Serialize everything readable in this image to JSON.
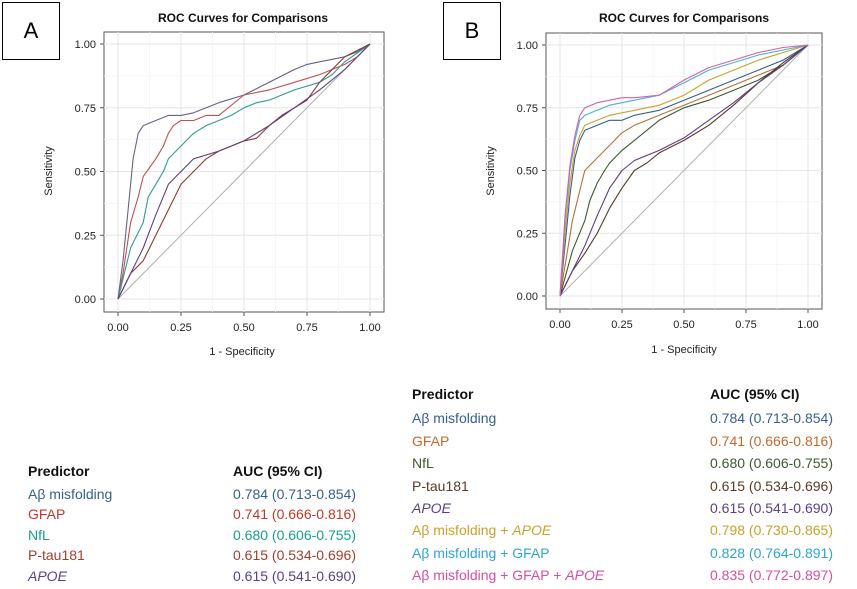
{
  "panels": [
    {
      "label": "A",
      "chart_data": {
        "type": "line",
        "title": "ROC Curves for Comparisons",
        "xlabel": "1 - Specificity",
        "ylabel": "Sensitivity",
        "xlim": [
          0,
          1
        ],
        "ylim": [
          0,
          1
        ],
        "xticks": [
          "0.00",
          "0.25",
          "0.50",
          "0.75",
          "1.00"
        ],
        "yticks": [
          "0.00",
          "0.25",
          "0.50",
          "0.75",
          "1.00"
        ],
        "grid": true,
        "series": [
          {
            "name": "Aβ misfolding",
            "color": "#6b5f8c",
            "x": [
              0,
              0.02,
              0.04,
              0.06,
              0.08,
              0.1,
              0.15,
              0.2,
              0.25,
              0.3,
              0.35,
              0.4,
              0.5,
              0.6,
              0.7,
              0.75,
              0.8,
              0.9,
              0.95,
              1
            ],
            "y": [
              0,
              0.15,
              0.35,
              0.55,
              0.65,
              0.68,
              0.7,
              0.72,
              0.72,
              0.73,
              0.75,
              0.77,
              0.8,
              0.85,
              0.9,
              0.92,
              0.93,
              0.95,
              0.97,
              1
            ]
          },
          {
            "name": "GFAP",
            "color": "#c0504d",
            "x": [
              0,
              0.02,
              0.05,
              0.08,
              0.1,
              0.15,
              0.18,
              0.2,
              0.22,
              0.25,
              0.3,
              0.35,
              0.4,
              0.5,
              0.6,
              0.7,
              0.8,
              0.9,
              0.95,
              1
            ],
            "y": [
              0,
              0.1,
              0.3,
              0.4,
              0.48,
              0.55,
              0.6,
              0.65,
              0.68,
              0.7,
              0.7,
              0.72,
              0.72,
              0.8,
              0.82,
              0.85,
              0.88,
              0.92,
              0.95,
              1
            ]
          },
          {
            "name": "NfL",
            "color": "#2e9d8f",
            "x": [
              0,
              0.05,
              0.1,
              0.12,
              0.15,
              0.18,
              0.2,
              0.25,
              0.3,
              0.35,
              0.4,
              0.45,
              0.5,
              0.55,
              0.6,
              0.7,
              0.8,
              0.85,
              0.9,
              1
            ],
            "y": [
              0,
              0.2,
              0.3,
              0.4,
              0.45,
              0.5,
              0.55,
              0.6,
              0.65,
              0.68,
              0.7,
              0.72,
              0.75,
              0.77,
              0.78,
              0.82,
              0.85,
              0.88,
              0.93,
              1
            ]
          },
          {
            "name": "P-tau181",
            "color": "#8c3b2e",
            "x": [
              0,
              0.05,
              0.1,
              0.15,
              0.2,
              0.25,
              0.3,
              0.35,
              0.4,
              0.45,
              0.5,
              0.55,
              0.6,
              0.65,
              0.7,
              0.75,
              0.8,
              0.85,
              0.9,
              1
            ],
            "y": [
              0,
              0.1,
              0.15,
              0.25,
              0.35,
              0.45,
              0.5,
              0.55,
              0.58,
              0.6,
              0.62,
              0.63,
              0.68,
              0.72,
              0.75,
              0.78,
              0.85,
              0.9,
              0.95,
              1
            ]
          },
          {
            "name": "APOE",
            "color": "#5a3f86",
            "x": [
              0,
              0.05,
              0.1,
              0.15,
              0.2,
              0.25,
              0.3,
              0.4,
              0.5,
              0.6,
              0.7,
              0.8,
              0.9,
              0.95,
              1
            ],
            "y": [
              0,
              0.1,
              0.2,
              0.33,
              0.45,
              0.5,
              0.55,
              0.58,
              0.62,
              0.68,
              0.75,
              0.82,
              0.9,
              0.95,
              1
            ]
          }
        ]
      },
      "table": {
        "header": {
          "predictor": "Predictor",
          "auc": "AUC (95% CI)"
        },
        "rows": [
          {
            "name": "Aβ misfolding",
            "auc": "0.784 (0.713-0.854)",
            "color": "#365f91"
          },
          {
            "name": "GFAP",
            "auc": "0.741 (0.666-0.816)",
            "color": "#c0392b"
          },
          {
            "name": "NfL",
            "auc": "0.680 (0.606-0.755)",
            "color": "#17a08c"
          },
          {
            "name": "P-tau181",
            "auc": "0.615 (0.534-0.696)",
            "color": "#a0402e"
          },
          {
            "name": "APOE",
            "auc": "0.615 (0.541-0.690)",
            "color": "#5b3f8a",
            "italic": true
          }
        ]
      }
    },
    {
      "label": "B",
      "chart_data": {
        "type": "line",
        "title": "ROC Curves for Comparisons",
        "xlabel": "1 - Specificity",
        "ylabel": "Sensitivity",
        "xlim": [
          0,
          1
        ],
        "ylim": [
          0,
          1
        ],
        "xticks": [
          "0.00",
          "0.25",
          "0.50",
          "0.75",
          "1.00"
        ],
        "yticks": [
          "0.00",
          "0.25",
          "0.50",
          "0.75",
          "1.00"
        ],
        "grid": true,
        "series": [
          {
            "name": "Aβ misfolding",
            "color": "#365f91",
            "x": [
              0,
              0.02,
              0.04,
              0.06,
              0.08,
              0.1,
              0.15,
              0.2,
              0.25,
              0.3,
              0.4,
              0.5,
              0.6,
              0.7,
              0.8,
              0.9,
              0.95,
              1
            ],
            "y": [
              0,
              0.2,
              0.4,
              0.55,
              0.62,
              0.66,
              0.68,
              0.7,
              0.7,
              0.72,
              0.74,
              0.78,
              0.82,
              0.86,
              0.9,
              0.94,
              0.97,
              1
            ]
          },
          {
            "name": "GFAP",
            "color": "#b5703a",
            "x": [
              0,
              0.02,
              0.05,
              0.08,
              0.1,
              0.15,
              0.2,
              0.25,
              0.3,
              0.35,
              0.4,
              0.5,
              0.6,
              0.7,
              0.8,
              0.9,
              0.95,
              1
            ],
            "y": [
              0,
              0.12,
              0.3,
              0.42,
              0.5,
              0.55,
              0.6,
              0.65,
              0.68,
              0.7,
              0.72,
              0.76,
              0.8,
              0.84,
              0.88,
              0.92,
              0.96,
              1
            ]
          },
          {
            "name": "NfL",
            "color": "#3d5a2e",
            "x": [
              0,
              0.05,
              0.1,
              0.12,
              0.15,
              0.18,
              0.2,
              0.25,
              0.3,
              0.35,
              0.4,
              0.5,
              0.6,
              0.7,
              0.8,
              0.9,
              1
            ],
            "y": [
              0,
              0.18,
              0.3,
              0.38,
              0.45,
              0.5,
              0.53,
              0.58,
              0.62,
              0.66,
              0.7,
              0.75,
              0.78,
              0.82,
              0.86,
              0.92,
              1
            ]
          },
          {
            "name": "P-tau181",
            "color": "#5a3a28",
            "x": [
              0,
              0.05,
              0.1,
              0.15,
              0.2,
              0.25,
              0.3,
              0.35,
              0.4,
              0.5,
              0.6,
              0.7,
              0.8,
              0.9,
              1
            ],
            "y": [
              0,
              0.1,
              0.17,
              0.25,
              0.35,
              0.43,
              0.5,
              0.53,
              0.57,
              0.62,
              0.68,
              0.76,
              0.85,
              0.93,
              1
            ]
          },
          {
            "name": "APOE",
            "color": "#5a3f86",
            "x": [
              0,
              0.05,
              0.1,
              0.15,
              0.2,
              0.25,
              0.3,
              0.4,
              0.5,
              0.6,
              0.7,
              0.8,
              0.9,
              1
            ],
            "y": [
              0,
              0.1,
              0.2,
              0.32,
              0.43,
              0.5,
              0.54,
              0.58,
              0.63,
              0.7,
              0.77,
              0.85,
              0.92,
              1
            ]
          },
          {
            "name": "Aβ misfolding + APOE",
            "color": "#c9a227",
            "x": [
              0,
              0.02,
              0.04,
              0.06,
              0.08,
              0.1,
              0.15,
              0.2,
              0.3,
              0.4,
              0.5,
              0.6,
              0.7,
              0.8,
              0.9,
              1
            ],
            "y": [
              0,
              0.25,
              0.45,
              0.58,
              0.64,
              0.68,
              0.7,
              0.72,
              0.74,
              0.76,
              0.8,
              0.86,
              0.9,
              0.94,
              0.97,
              1
            ]
          },
          {
            "name": "Aβ misfolding + GFAP",
            "color": "#4bb0d6",
            "x": [
              0,
              0.02,
              0.04,
              0.06,
              0.08,
              0.1,
              0.15,
              0.2,
              0.25,
              0.3,
              0.4,
              0.5,
              0.6,
              0.7,
              0.8,
              0.9,
              1
            ],
            "y": [
              0,
              0.3,
              0.5,
              0.62,
              0.7,
              0.72,
              0.74,
              0.76,
              0.77,
              0.78,
              0.8,
              0.85,
              0.9,
              0.93,
              0.96,
              0.98,
              1
            ]
          },
          {
            "name": "Aβ misfolding + GFAP + APOE",
            "color": "#d65fa8",
            "x": [
              0,
              0.02,
              0.04,
              0.06,
              0.08,
              0.1,
              0.15,
              0.2,
              0.25,
              0.3,
              0.4,
              0.5,
              0.6,
              0.7,
              0.8,
              0.9,
              1
            ],
            "y": [
              0,
              0.32,
              0.52,
              0.64,
              0.72,
              0.75,
              0.77,
              0.78,
              0.79,
              0.79,
              0.8,
              0.86,
              0.91,
              0.94,
              0.97,
              0.99,
              1
            ]
          }
        ]
      },
      "table": {
        "header": {
          "predictor": "Predictor",
          "auc": "AUC (95% CI)"
        },
        "rows": [
          {
            "name": "Aβ misfolding",
            "auc": "0.784 (0.713-0.854)",
            "color": "#365f91"
          },
          {
            "name": "GFAP",
            "auc": "0.741 (0.666-0.816)",
            "color": "#c06a2c"
          },
          {
            "name": "NfL",
            "auc": "0.680 (0.606-0.755)",
            "color": "#3d5a2e"
          },
          {
            "name": "P-tau181",
            "auc": "0.615 (0.534-0.696)",
            "color": "#5a3a28"
          },
          {
            "name": "APOE",
            "auc": "0.615 (0.541-0.690)",
            "color": "#5b3f8a",
            "italic": true
          },
          {
            "name": "Aβ misfolding + ",
            "name_it": "APOE",
            "auc": "0.798 (0.730-0.865)",
            "color": "#c9a227"
          },
          {
            "name": "Aβ misfolding + GFAP",
            "auc": "0.828 (0.764-0.891)",
            "color": "#2ea6d0"
          },
          {
            "name": "Aβ misfolding + GFAP + ",
            "name_it": "APOE",
            "auc": "0.835 (0.772-0.897)",
            "color": "#d6509e"
          }
        ]
      }
    }
  ]
}
